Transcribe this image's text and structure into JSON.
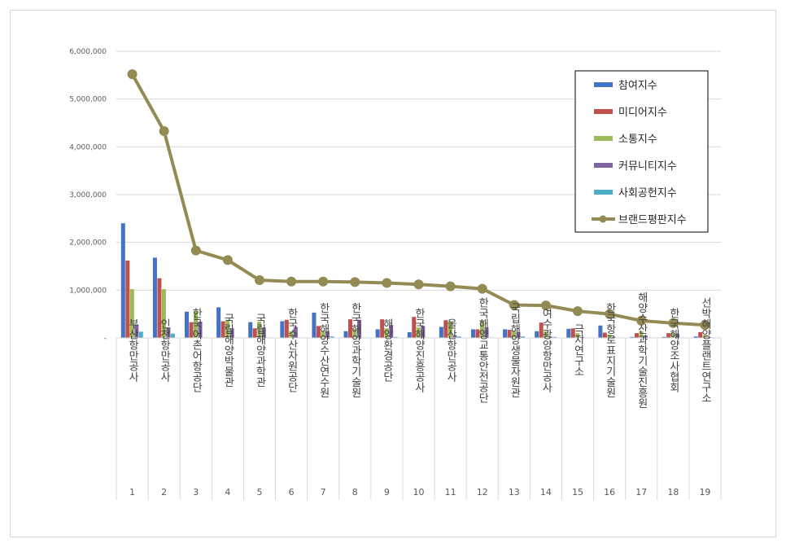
{
  "chart_data": {
    "type": "bar",
    "categories": [
      "부산항만공사",
      "인천항만공사",
      "한국어촌어항공단",
      "국립해양박물관",
      "국립해양과학관",
      "한국수산자원공단",
      "한국해양수산연수원",
      "한국해양과학기술원",
      "해양환경공단",
      "한국해양진흥공사",
      "울산항만공사",
      "한국해양교통안전공단",
      "국립해양생물자원관",
      "여수광양항만공사",
      "극지연구소",
      "한국항로표지기술원",
      "해양수산과학기술진흥원",
      "한국해양조사협회",
      "선박해양플랜트연구소"
    ],
    "ranks": [
      "1",
      "2",
      "3",
      "4",
      "5",
      "6",
      "7",
      "8",
      "9",
      "10",
      "11",
      "12",
      "13",
      "14",
      "15",
      "16",
      "17",
      "18",
      "19"
    ],
    "series": [
      {
        "name": "참여지수",
        "kind": "bar",
        "color": "#4472c4",
        "values": [
          2400000,
          1680000,
          550000,
          640000,
          330000,
          350000,
          530000,
          140000,
          180000,
          120000,
          230000,
          180000,
          180000,
          140000,
          190000,
          260000,
          20000,
          20000,
          30000
        ]
      },
      {
        "name": "미디어지수",
        "kind": "bar",
        "color": "#c0504d",
        "values": [
          1620000,
          1250000,
          330000,
          350000,
          200000,
          380000,
          250000,
          390000,
          390000,
          440000,
          370000,
          180000,
          170000,
          320000,
          200000,
          110000,
          100000,
          100000,
          120000
        ]
      },
      {
        "name": "소통지수",
        "kind": "bar",
        "color": "#9bbb59",
        "values": [
          1020000,
          1020000,
          550000,
          380000,
          340000,
          140000,
          150000,
          190000,
          200000,
          220000,
          340000,
          360000,
          150000,
          140000,
          100000,
          70000,
          140000,
          110000,
          60000
        ]
      },
      {
        "name": "커뮤니티지수",
        "kind": "bar",
        "color": "#8064a2",
        "values": [
          280000,
          220000,
          340000,
          200000,
          220000,
          230000,
          140000,
          380000,
          270000,
          250000,
          60000,
          220000,
          120000,
          30000,
          20000,
          20000,
          50000,
          80000,
          20000
        ]
      },
      {
        "name": "사회공헌지수",
        "kind": "bar",
        "color": "#4bacc6",
        "values": [
          130000,
          90000,
          10000,
          10000,
          10000,
          10000,
          30000,
          10000,
          20000,
          10000,
          30000,
          10000,
          30000,
          20000,
          10000,
          10000,
          10000,
          10000,
          10000
        ]
      },
      {
        "name": "브랜드평판지수",
        "kind": "line",
        "color": "#948a54",
        "values": [
          5520000,
          4330000,
          1830000,
          1630000,
          1210000,
          1180000,
          1180000,
          1170000,
          1150000,
          1120000,
          1080000,
          1030000,
          690000,
          680000,
          560000,
          500000,
          360000,
          310000,
          270000
        ]
      }
    ],
    "y_ticks": [
      "6,000,000",
      "5,000,000",
      "4,000,000",
      "3,000,000",
      "2,000,000",
      "1,000,000",
      "-"
    ],
    "ylim": [
      0,
      6000000
    ],
    "legend_position": "top-right",
    "grid": true
  }
}
